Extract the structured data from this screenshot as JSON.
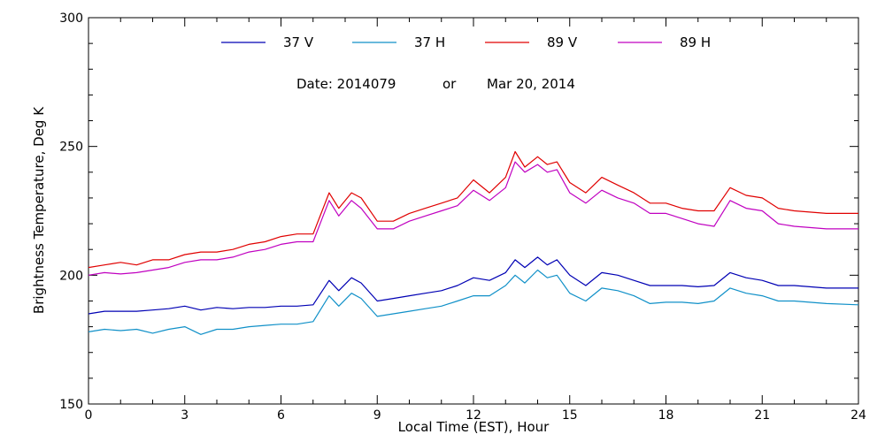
{
  "chart_data": {
    "type": "line",
    "title": "",
    "xlabel": "Local Time (EST), Hour",
    "ylabel": "Brightness Temperature, Deg K",
    "xlim": [
      0,
      24
    ],
    "ylim": [
      150,
      300
    ],
    "x_ticks": [
      0,
      3,
      6,
      9,
      12,
      15,
      18,
      21,
      24
    ],
    "y_ticks": [
      150,
      200,
      250,
      300
    ],
    "grid": false,
    "legend_position": "top",
    "annotation": {
      "date_label": "Date: 2014079",
      "or_label": "or",
      "date_text": "Mar 20, 2014"
    },
    "series": [
      {
        "name": "37 V",
        "color": "#0000b4",
        "points": [
          [
            0,
            185
          ],
          [
            0.5,
            186
          ],
          [
            1,
            186
          ],
          [
            1.5,
            186
          ],
          [
            2,
            186.5
          ],
          [
            2.5,
            187
          ],
          [
            3,
            188
          ],
          [
            3.5,
            186.5
          ],
          [
            4,
            187.5
          ],
          [
            4.5,
            187
          ],
          [
            5,
            187.5
          ],
          [
            5.5,
            187.5
          ],
          [
            6,
            188
          ],
          [
            6.5,
            188
          ],
          [
            7,
            188.5
          ],
          [
            7.5,
            198
          ],
          [
            7.8,
            194
          ],
          [
            8.2,
            199
          ],
          [
            8.5,
            197
          ],
          [
            9,
            190
          ],
          [
            9.5,
            191
          ],
          [
            10,
            192
          ],
          [
            10.5,
            193
          ],
          [
            11,
            194
          ],
          [
            11.5,
            196
          ],
          [
            12,
            199
          ],
          [
            12.5,
            198
          ],
          [
            13,
            201
          ],
          [
            13.3,
            206
          ],
          [
            13.6,
            203
          ],
          [
            14,
            207
          ],
          [
            14.3,
            204
          ],
          [
            14.6,
            206
          ],
          [
            15,
            200
          ],
          [
            15.5,
            196
          ],
          [
            16,
            201
          ],
          [
            16.5,
            200
          ],
          [
            17,
            198
          ],
          [
            17.5,
            196
          ],
          [
            18,
            196
          ],
          [
            18.5,
            196
          ],
          [
            19,
            195.5
          ],
          [
            19.5,
            196
          ],
          [
            20,
            201
          ],
          [
            20.5,
            199
          ],
          [
            21,
            198
          ],
          [
            21.5,
            196
          ],
          [
            22,
            196
          ],
          [
            23,
            195
          ],
          [
            24,
            195
          ]
        ]
      },
      {
        "name": "37 H",
        "color": "#1090c8",
        "points": [
          [
            0,
            178
          ],
          [
            0.5,
            179
          ],
          [
            1,
            178.5
          ],
          [
            1.5,
            179
          ],
          [
            2,
            177.5
          ],
          [
            2.5,
            179
          ],
          [
            3,
            180
          ],
          [
            3.5,
            177
          ],
          [
            4,
            179
          ],
          [
            4.5,
            179
          ],
          [
            5,
            180
          ],
          [
            5.5,
            180.5
          ],
          [
            6,
            181
          ],
          [
            6.5,
            181
          ],
          [
            7,
            182
          ],
          [
            7.5,
            192
          ],
          [
            7.8,
            188
          ],
          [
            8.2,
            193
          ],
          [
            8.5,
            191
          ],
          [
            9,
            184
          ],
          [
            9.5,
            185
          ],
          [
            10,
            186
          ],
          [
            10.5,
            187
          ],
          [
            11,
            188
          ],
          [
            11.5,
            190
          ],
          [
            12,
            192
          ],
          [
            12.5,
            192
          ],
          [
            13,
            196
          ],
          [
            13.3,
            200
          ],
          [
            13.6,
            197
          ],
          [
            14,
            202
          ],
          [
            14.3,
            199
          ],
          [
            14.6,
            200
          ],
          [
            15,
            193
          ],
          [
            15.5,
            190
          ],
          [
            16,
            195
          ],
          [
            16.5,
            194
          ],
          [
            17,
            192
          ],
          [
            17.5,
            189
          ],
          [
            18,
            189.5
          ],
          [
            18.5,
            189.5
          ],
          [
            19,
            189
          ],
          [
            19.5,
            190
          ],
          [
            20,
            195
          ],
          [
            20.5,
            193
          ],
          [
            21,
            192
          ],
          [
            21.5,
            190
          ],
          [
            22,
            190
          ],
          [
            23,
            189
          ],
          [
            24,
            188.5
          ]
        ]
      },
      {
        "name": "89 V",
        "color": "#e00000",
        "points": [
          [
            0,
            203
          ],
          [
            0.5,
            204
          ],
          [
            1,
            205
          ],
          [
            1.5,
            204
          ],
          [
            2,
            206
          ],
          [
            2.5,
            206
          ],
          [
            3,
            208
          ],
          [
            3.5,
            209
          ],
          [
            4,
            209
          ],
          [
            4.5,
            210
          ],
          [
            5,
            212
          ],
          [
            5.5,
            213
          ],
          [
            6,
            215
          ],
          [
            6.5,
            216
          ],
          [
            7,
            216
          ],
          [
            7.5,
            232
          ],
          [
            7.8,
            226
          ],
          [
            8.2,
            232
          ],
          [
            8.5,
            230
          ],
          [
            9,
            221
          ],
          [
            9.5,
            221
          ],
          [
            10,
            224
          ],
          [
            10.5,
            226
          ],
          [
            11,
            228
          ],
          [
            11.5,
            230
          ],
          [
            12,
            237
          ],
          [
            12.5,
            232
          ],
          [
            13,
            238
          ],
          [
            13.3,
            248
          ],
          [
            13.6,
            242
          ],
          [
            14,
            246
          ],
          [
            14.3,
            243
          ],
          [
            14.6,
            244
          ],
          [
            15,
            236
          ],
          [
            15.5,
            232
          ],
          [
            16,
            238
          ],
          [
            16.5,
            235
          ],
          [
            17,
            232
          ],
          [
            17.5,
            228
          ],
          [
            18,
            228
          ],
          [
            18.5,
            226
          ],
          [
            19,
            225
          ],
          [
            19.5,
            225
          ],
          [
            20,
            234
          ],
          [
            20.5,
            231
          ],
          [
            21,
            230
          ],
          [
            21.5,
            226
          ],
          [
            22,
            225
          ],
          [
            23,
            224
          ],
          [
            24,
            224
          ]
        ]
      },
      {
        "name": "89 H",
        "color": "#c000c0",
        "points": [
          [
            0,
            200
          ],
          [
            0.5,
            201
          ],
          [
            1,
            200.5
          ],
          [
            1.5,
            201
          ],
          [
            2,
            202
          ],
          [
            2.5,
            203
          ],
          [
            3,
            205
          ],
          [
            3.5,
            206
          ],
          [
            4,
            206
          ],
          [
            4.5,
            207
          ],
          [
            5,
            209
          ],
          [
            5.5,
            210
          ],
          [
            6,
            212
          ],
          [
            6.5,
            213
          ],
          [
            7,
            213
          ],
          [
            7.5,
            229
          ],
          [
            7.8,
            223
          ],
          [
            8.2,
            229
          ],
          [
            8.5,
            226
          ],
          [
            9,
            218
          ],
          [
            9.5,
            218
          ],
          [
            10,
            221
          ],
          [
            10.5,
            223
          ],
          [
            11,
            225
          ],
          [
            11.5,
            227
          ],
          [
            12,
            233
          ],
          [
            12.5,
            229
          ],
          [
            13,
            234
          ],
          [
            13.3,
            244
          ],
          [
            13.6,
            240
          ],
          [
            14,
            243
          ],
          [
            14.3,
            240
          ],
          [
            14.6,
            241
          ],
          [
            15,
            232
          ],
          [
            15.5,
            228
          ],
          [
            16,
            233
          ],
          [
            16.5,
            230
          ],
          [
            17,
            228
          ],
          [
            17.5,
            224
          ],
          [
            18,
            224
          ],
          [
            18.5,
            222
          ],
          [
            19,
            220
          ],
          [
            19.5,
            219
          ],
          [
            20,
            229
          ],
          [
            20.5,
            226
          ],
          [
            21,
            225
          ],
          [
            21.5,
            220
          ],
          [
            22,
            219
          ],
          [
            23,
            218
          ],
          [
            24,
            218
          ]
        ]
      }
    ]
  }
}
